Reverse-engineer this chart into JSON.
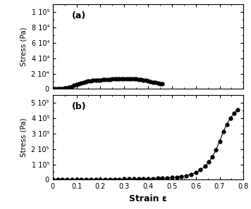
{
  "panel_a": {
    "strain": [
      0.0,
      0.01,
      0.02,
      0.03,
      0.04,
      0.05,
      0.06,
      0.07,
      0.08,
      0.09,
      0.1,
      0.11,
      0.12,
      0.13,
      0.14,
      0.15,
      0.16,
      0.17,
      0.18,
      0.19,
      0.2,
      0.21,
      0.22,
      0.23,
      0.24,
      0.25,
      0.26,
      0.27,
      0.28,
      0.29,
      0.3,
      0.31,
      0.32,
      0.33,
      0.34,
      0.35,
      0.36,
      0.37,
      0.38,
      0.39,
      0.4,
      0.41,
      0.42,
      0.43,
      0.44,
      0.45,
      0.46
    ],
    "stress": [
      0,
      100,
      200,
      400,
      700,
      1100,
      1700,
      2400,
      3400,
      4600,
      5800,
      7000,
      8000,
      8800,
      9500,
      10100,
      10600,
      11000,
      11300,
      11600,
      11800,
      12100,
      12300,
      12500,
      12700,
      12900,
      13100,
      13200,
      13300,
      13400,
      13500,
      13500,
      13400,
      13300,
      13200,
      13000,
      12700,
      12300,
      11800,
      11200,
      10600,
      9800,
      9000,
      8200,
      7600,
      7000,
      6500
    ],
    "ylabel": "Stress (Pa)",
    "label": "(a)",
    "ylim": [
      0,
      110000
    ],
    "yticks": [
      0,
      20000,
      40000,
      60000,
      80000,
      100000
    ],
    "ytick_labels": [
      "0",
      "2 10⁴",
      "4 10⁴",
      "6 10⁴",
      "8 10⁴",
      "1 10⁵"
    ]
  },
  "panel_b": {
    "strain": [
      0.0,
      0.02,
      0.04,
      0.06,
      0.08,
      0.1,
      0.12,
      0.14,
      0.16,
      0.18,
      0.2,
      0.22,
      0.24,
      0.26,
      0.28,
      0.3,
      0.32,
      0.34,
      0.36,
      0.38,
      0.4,
      0.42,
      0.44,
      0.46,
      0.48,
      0.5,
      0.52,
      0.54,
      0.56,
      0.58,
      0.6,
      0.62,
      0.64,
      0.655,
      0.67,
      0.685,
      0.7,
      0.715,
      0.73,
      0.745,
      0.76,
      0.775
    ],
    "stress": [
      0,
      200,
      400,
      600,
      800,
      1000,
      1200,
      1400,
      1700,
      2000,
      2300,
      2600,
      3000,
      3400,
      3800,
      4200,
      4700,
      5200,
      5800,
      6500,
      7300,
      8200,
      9300,
      10500,
      12000,
      14000,
      17000,
      21000,
      27000,
      35000,
      47000,
      64000,
      88000,
      115000,
      150000,
      195000,
      250000,
      310000,
      360000,
      400000,
      430000,
      455000
    ],
    "ylabel": "Stress (Pa)",
    "label": "(b)",
    "ylim": [
      0,
      550000
    ],
    "yticks": [
      0,
      100000,
      200000,
      300000,
      400000,
      500000
    ],
    "ytick_labels": [
      "0",
      "1 10⁵",
      "2 10⁵",
      "3 10⁵",
      "4 10⁵",
      "5 10⁵"
    ]
  },
  "xlabel": "Strain ε",
  "xlim": [
    0,
    0.8
  ],
  "xticks": [
    0,
    0.1,
    0.2,
    0.3,
    0.4,
    0.5,
    0.6,
    0.7,
    0.8
  ],
  "marker": "o",
  "markersize": 3.5,
  "linewidth": 0.8,
  "color": "black",
  "background_color": "#ffffff"
}
